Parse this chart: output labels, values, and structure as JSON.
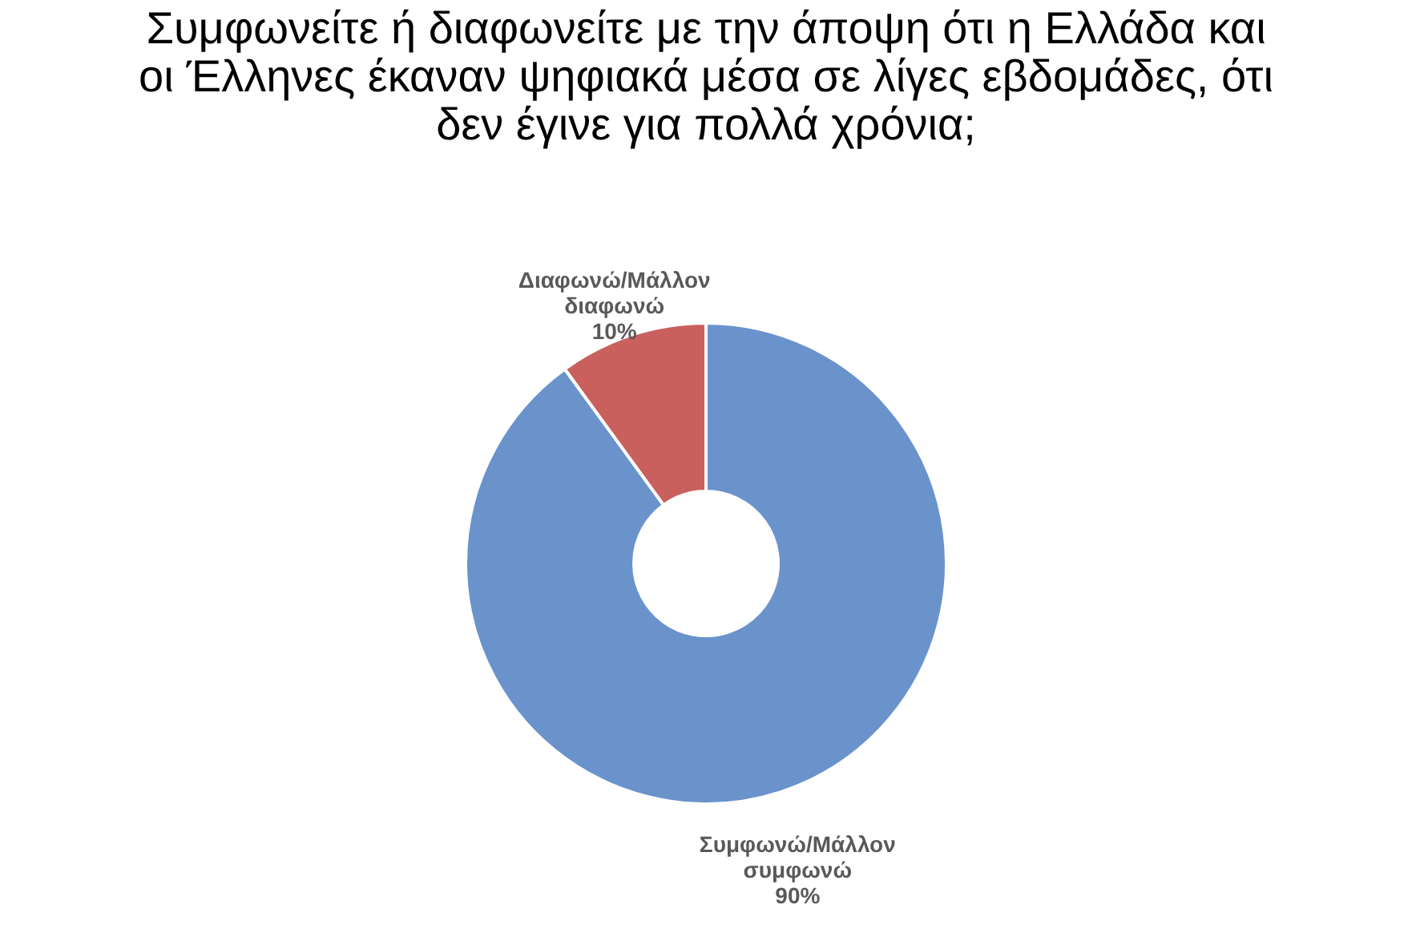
{
  "chart_data": {
    "type": "donut",
    "title": "Συμφωνείτε ή διαφωνείτε με την άποψη ότι η Ελλάδα και οι Έλληνες έκαναν ψηφιακά μέσα σε λίγες εβδομάδες, ότι δεν έγινε για πολλά χρόνια;",
    "categories": [
      "Συμφωνώ/Μάλλον συμφωνώ",
      "Διαφωνώ/Μάλλον διαφωνώ"
    ],
    "values": [
      90,
      10
    ],
    "colors": [
      "#6a93cc",
      "#c9605e"
    ],
    "value_labels": [
      "90%",
      "10%"
    ],
    "legend": false
  }
}
